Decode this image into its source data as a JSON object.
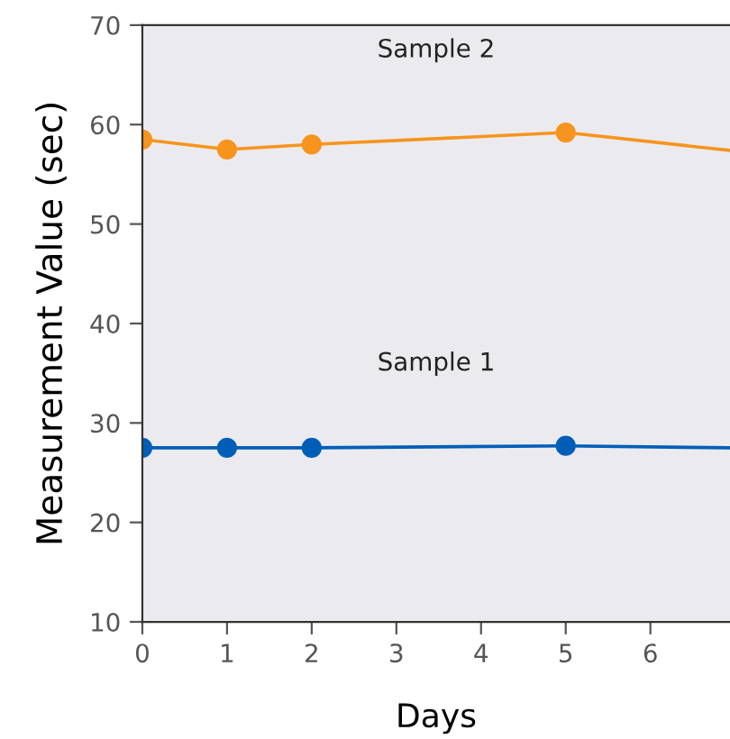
{
  "chart_data": {
    "type": "line",
    "xlabel": "Days",
    "ylabel": "Measurement Value (sec)",
    "x": [
      0,
      1,
      2,
      5,
      6.94
    ],
    "series": [
      {
        "name": "Sample 1",
        "color": "#005eb8",
        "values": [
          27.5,
          27.5,
          27.5,
          27.7,
          27.5
        ]
      },
      {
        "name": "Sample 2",
        "color": "#f7941d",
        "values": [
          58.5,
          57.5,
          58.0,
          59.2,
          57.4
        ]
      }
    ],
    "xlim": [
      0,
      6.94
    ],
    "xticks": [
      0,
      1,
      2,
      3,
      4,
      5,
      6
    ],
    "ylim": [
      10,
      70
    ],
    "yticks": [
      10,
      20,
      30,
      40,
      50,
      60,
      70
    ],
    "marker": "circle",
    "line_style": "solid",
    "grid": false,
    "legend": false
  }
}
